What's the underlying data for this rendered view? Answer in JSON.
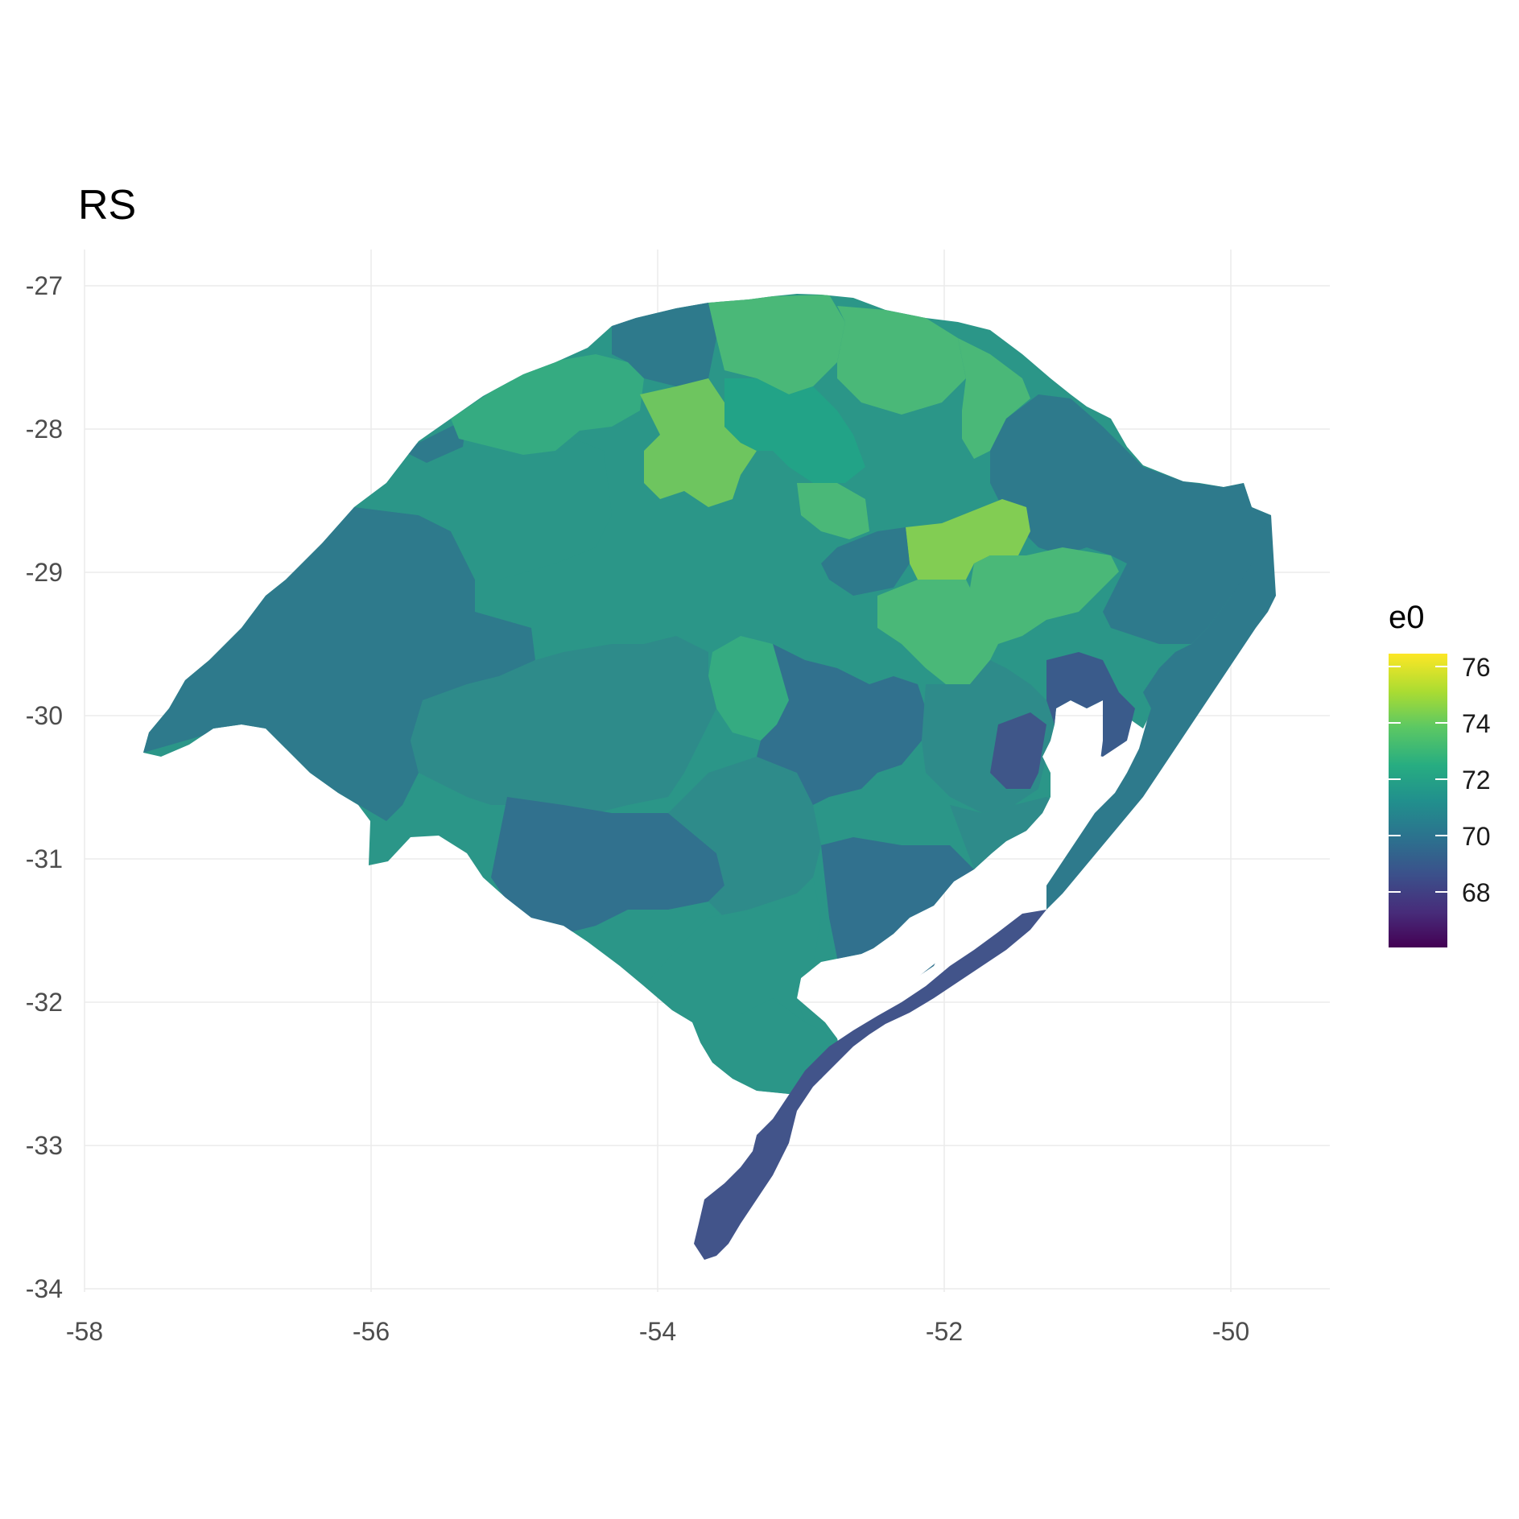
{
  "title": "RS",
  "chart_data": {
    "type": "choropleth",
    "title": "RS",
    "xlim": [
      -58,
      -49.3
    ],
    "ylim": [
      -34,
      -26.8
    ],
    "x_ticks": [
      -58,
      -56,
      -54,
      -52,
      -50
    ],
    "y_ticks": [
      -27,
      -28,
      -29,
      -30,
      -31,
      -32,
      -33,
      -34
    ],
    "x_tick_labels": [
      "-58",
      "-56",
      "-54",
      "-52",
      "-50"
    ],
    "y_tick_labels": [
      "-27",
      "-28",
      "-29",
      "-30",
      "-31",
      "-32",
      "-33",
      "-34"
    ],
    "grid": true,
    "legend": {
      "title": "e0",
      "position": "right",
      "palette": "viridis",
      "range": [
        66,
        76.5
      ],
      "breaks": [
        68,
        70,
        72,
        74,
        76
      ],
      "break_labels": [
        "68",
        "70",
        "72",
        "74",
        "76"
      ]
    },
    "regions": [
      {
        "color": "#2e7a8c",
        "e0": 70.3
      },
      {
        "color": "#2b9688",
        "e0": 71.3
      },
      {
        "color": "#2a9a86",
        "e0": 71.4
      },
      {
        "color": "#2d7f8d",
        "e0": 70.5
      },
      {
        "color": "#31718e",
        "e0": 70.0
      },
      {
        "color": "#3a5b8b",
        "e0": 69.2
      },
      {
        "color": "#42548a",
        "e0": 68.9
      },
      {
        "color": "#3f5689",
        "e0": 69.0
      },
      {
        "color": "#2e8b8a",
        "e0": 70.9
      },
      {
        "color": "#35ab81",
        "e0": 72.0
      },
      {
        "color": "#4ab878",
        "e0": 72.6
      },
      {
        "color": "#6ec55f",
        "e0": 73.6
      },
      {
        "color": "#82cd53",
        "e0": 74.1
      },
      {
        "color": "#22a387",
        "e0": 71.7
      }
    ]
  }
}
